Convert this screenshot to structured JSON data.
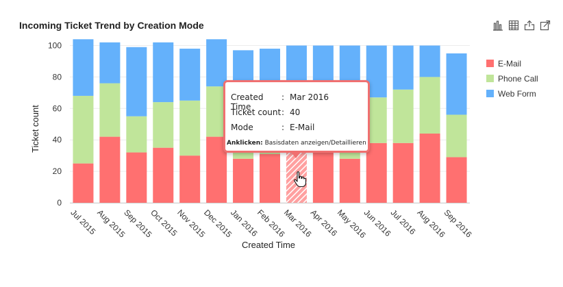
{
  "header": {
    "title": "Incoming Ticket Trend by Creation Mode"
  },
  "toolbar": {
    "icons": [
      "bar-chart-icon",
      "table-icon",
      "export-icon",
      "popout-icon"
    ]
  },
  "colors": {
    "email": "#ff7070",
    "phone": "#c0e59a",
    "web": "#64b1fb",
    "highlight": "#ffa0a0"
  },
  "tooltip": {
    "created_time_label": "Created Time",
    "created_time_value": "Mar 2016",
    "ticket_count_label": "Ticket count",
    "ticket_count_value": "40",
    "mode_label": "Mode",
    "mode_value": "E-Mail",
    "hint_bold": "Anklicken:",
    "hint_text": "Basisdaten anzeigen/Detaillieren"
  },
  "chart_data": {
    "type": "bar",
    "stacked": true,
    "title": "Incoming Ticket Trend by Creation Mode",
    "xlabel": "Created Time",
    "ylabel": "Ticket count",
    "ylim": [
      0,
      110
    ],
    "yticks": [
      0,
      20,
      40,
      60,
      80,
      100
    ],
    "categories": [
      "Jul 2015",
      "Aug 2015",
      "Sep 2015",
      "Oct 2015",
      "Nov 2015",
      "Dec 2015",
      "Jan 2016",
      "Feb 2016",
      "Mar 2016",
      "Apr 2016",
      "May 2016",
      "Jun 2016",
      "Jul 2016",
      "Aug 2016",
      "Sep 2016"
    ],
    "series": [
      {
        "name": "E-Mail",
        "values": [
          25,
          42,
          32,
          35,
          30,
          42,
          28,
          31,
          40,
          38,
          28,
          38,
          38,
          44,
          29
        ]
      },
      {
        "name": "Phone Call",
        "values": [
          43,
          34,
          23,
          29,
          35,
          32,
          29,
          34,
          30,
          29,
          33,
          29,
          34,
          36,
          27
        ]
      },
      {
        "name": "Web Form",
        "values": [
          36,
          26,
          44,
          38,
          33,
          30,
          40,
          33,
          30,
          33,
          39,
          33,
          28,
          20,
          39
        ]
      }
    ],
    "highlighted": {
      "category": "Mar 2016",
      "series": "E-Mail"
    },
    "legend_position": "right"
  }
}
